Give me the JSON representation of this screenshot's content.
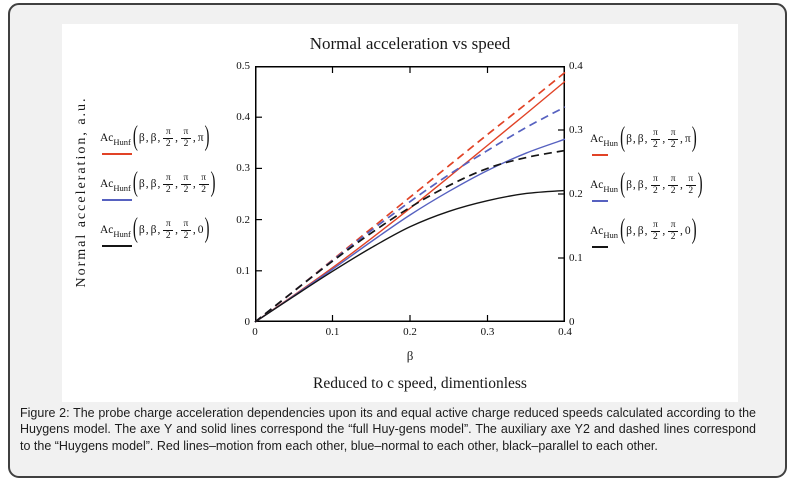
{
  "figure_panel": {
    "background_color": "#f1f1f1",
    "border_color": "#404040"
  },
  "chart_data": {
    "type": "line",
    "title": "Normal acceleration vs speed",
    "ylabel": "Normal acceleration, a.u.",
    "xlabel": "β",
    "xlabel_secondary": "Reduced to c speed, dimentionless",
    "x_range": [
      0,
      0.4
    ],
    "y_left_range": [
      0,
      0.5
    ],
    "y_right_range": [
      0,
      0.4
    ],
    "grid": false,
    "legend_position": "left-and-right-margins",
    "x_tick_labels": [
      "0",
      "0.1",
      "0.2",
      "0.3",
      "0.4"
    ],
    "y_left_tick_labels": [
      "0",
      "0.1",
      "0.2",
      "0.3",
      "0.4",
      "0.5"
    ],
    "y_right_tick_labels": [
      "0",
      "0.1",
      "0.2",
      "0.3",
      "0.4"
    ],
    "x": [
      0,
      0.05,
      0.1,
      0.15,
      0.2,
      0.25,
      0.3,
      0.35,
      0.4
    ],
    "series": [
      {
        "name": "Ac_Hunf(β, β, π/2, π/2, π)",
        "axis": "left",
        "style": "solid",
        "color": "#e14326",
        "values": [
          0,
          0.052,
          0.106,
          0.163,
          0.222,
          0.283,
          0.345,
          0.407,
          0.47
        ]
      },
      {
        "name": "Ac_Hunf(β, β, π/2, π/2, π/2)",
        "axis": "left",
        "style": "solid",
        "color": "#5661c0",
        "values": [
          0,
          0.051,
          0.103,
          0.157,
          0.209,
          0.255,
          0.296,
          0.33,
          0.357
        ]
      },
      {
        "name": "Ac_Hunf(β, β, π/2, π/2, 0)",
        "axis": "left",
        "style": "solid",
        "color": "#151515",
        "values": [
          0,
          0.05,
          0.099,
          0.145,
          0.186,
          0.216,
          0.237,
          0.251,
          0.257
        ]
      },
      {
        "name": "Ac_Hun(β, β, π/2, π/2, π)",
        "axis": "right",
        "style": "dashed",
        "color": "#e14326",
        "values": [
          0,
          0.048,
          0.097,
          0.146,
          0.195,
          0.244,
          0.293,
          0.341,
          0.39
        ]
      },
      {
        "name": "Ac_Hun(β, β, π/2, π/2, π/2)",
        "axis": "right",
        "style": "dashed",
        "color": "#5661c0",
        "values": [
          0,
          0.048,
          0.096,
          0.143,
          0.188,
          0.23,
          0.268,
          0.304,
          0.336
        ]
      },
      {
        "name": "Ac_Hun(β, β, π/2, π/2, 0)",
        "axis": "right",
        "style": "dashed",
        "color": "#151515",
        "values": [
          0,
          0.048,
          0.095,
          0.139,
          0.179,
          0.213,
          0.24,
          0.257,
          0.268
        ]
      }
    ]
  },
  "legend_left": {
    "entries": [
      {
        "func": "Ac",
        "sub": "Hunf",
        "args": [
          "β",
          "β",
          "π/2",
          "π/2",
          "π"
        ],
        "color": "#e14326"
      },
      {
        "func": "Ac",
        "sub": "Hunf",
        "args": [
          "β",
          "β",
          "π/2",
          "π/2",
          "π/2"
        ],
        "color": "#5661c0"
      },
      {
        "func": "Ac",
        "sub": "Hunf",
        "args": [
          "β",
          "β",
          "π/2",
          "π/2",
          "0"
        ],
        "color": "#151515"
      }
    ]
  },
  "legend_right": {
    "entries": [
      {
        "func": "Ac",
        "sub": "Hun",
        "args": [
          "β",
          "β",
          "π/2",
          "π/2",
          "π"
        ],
        "color": "#e14326"
      },
      {
        "func": "Ac",
        "sub": "Hun",
        "args": [
          "β",
          "β",
          "π/2",
          "π/2",
          "π/2"
        ],
        "color": "#5661c0"
      },
      {
        "func": "Ac",
        "sub": "Hun",
        "args": [
          "β",
          "β",
          "π/2",
          "π/2",
          "0"
        ],
        "color": "#151515"
      }
    ]
  },
  "caption": {
    "text": "Figure 2: The probe charge acceleration dependencies upon its and equal active charge reduced speeds calculated according to the Huygens model. The axe Y and solid lines correspond the “full Huy-gens model”. The auxiliary axe Y2 and dashed lines correspond to the “Huygens model”. Red lines–motion from each other, blue–normal to each other, black–parallel to each other."
  }
}
